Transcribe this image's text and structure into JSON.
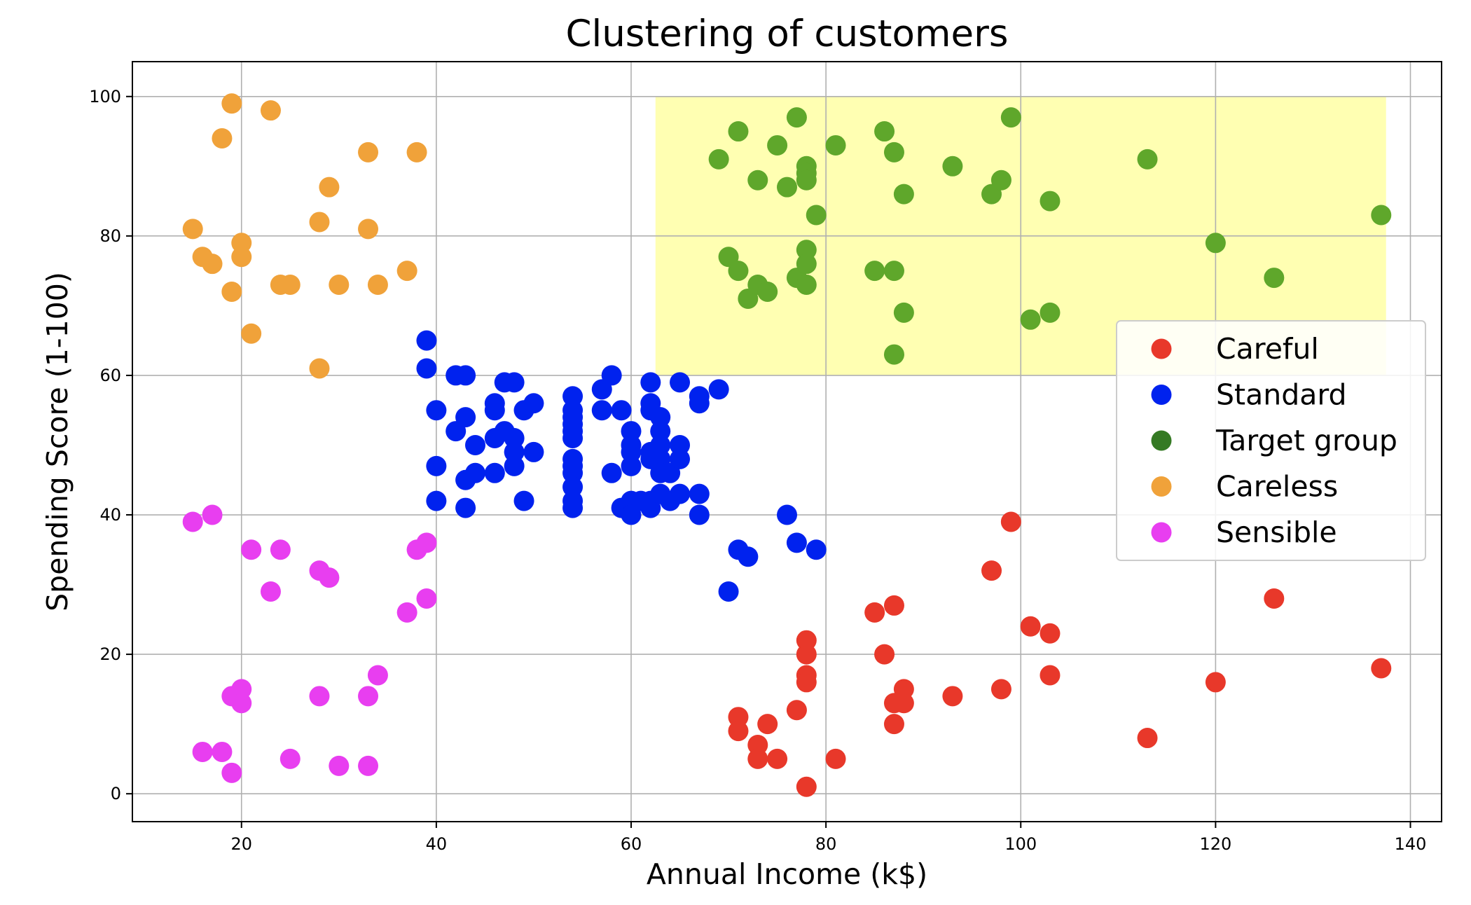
{
  "chart_data": {
    "type": "scatter",
    "title": "Clustering of customers",
    "xlabel": "Annual Income (k$)",
    "ylabel": "Spending Score (1-100)",
    "xlim": [
      8.8,
      143.2
    ],
    "ylim": [
      -4,
      105
    ],
    "xticks": [
      20,
      40,
      60,
      80,
      100,
      120,
      140
    ],
    "yticks": [
      0,
      20,
      40,
      60,
      80,
      100
    ],
    "grid": true,
    "legend_position": "right",
    "highlight_region": {
      "x": [
        62.5,
        137.5
      ],
      "y": [
        60,
        100
      ],
      "color": "#ffffb2"
    },
    "series": [
      {
        "name": "Careful",
        "color": "#e8382a",
        "points": [
          [
            71,
            11
          ],
          [
            71,
            9
          ],
          [
            73,
            7
          ],
          [
            73,
            5
          ],
          [
            74,
            10
          ],
          [
            75,
            5
          ],
          [
            77,
            12
          ],
          [
            78,
            22
          ],
          [
            78,
            20
          ],
          [
            78,
            17
          ],
          [
            78,
            16
          ],
          [
            78,
            1
          ],
          [
            81,
            5
          ],
          [
            85,
            26
          ],
          [
            86,
            20
          ],
          [
            87,
            27
          ],
          [
            87,
            13
          ],
          [
            87,
            10
          ],
          [
            88,
            15
          ],
          [
            88,
            13
          ],
          [
            93,
            14
          ],
          [
            97,
            32
          ],
          [
            98,
            15
          ],
          [
            99,
            39
          ],
          [
            101,
            24
          ],
          [
            103,
            23
          ],
          [
            103,
            17
          ],
          [
            113,
            8
          ],
          [
            120,
            16
          ],
          [
            126,
            28
          ],
          [
            137,
            18
          ]
        ]
      },
      {
        "name": "Standard",
        "color": "#0022ee",
        "points": [
          [
            39,
            65
          ],
          [
            39,
            61
          ],
          [
            40,
            55
          ],
          [
            40,
            47
          ],
          [
            40,
            42
          ],
          [
            42,
            60
          ],
          [
            42,
            52
          ],
          [
            43,
            60
          ],
          [
            43,
            54
          ],
          [
            43,
            45
          ],
          [
            43,
            41
          ],
          [
            44,
            50
          ],
          [
            44,
            46
          ],
          [
            46,
            56
          ],
          [
            46,
            55
          ],
          [
            46,
            51
          ],
          [
            46,
            46
          ],
          [
            47,
            59
          ],
          [
            47,
            52
          ],
          [
            48,
            59
          ],
          [
            48,
            51
          ],
          [
            48,
            49
          ],
          [
            48,
            47
          ],
          [
            49,
            55
          ],
          [
            49,
            42
          ],
          [
            50,
            56
          ],
          [
            50,
            49
          ],
          [
            54,
            57
          ],
          [
            54,
            55
          ],
          [
            54,
            54
          ],
          [
            54,
            53
          ],
          [
            54,
            52
          ],
          [
            54,
            51
          ],
          [
            54,
            48
          ],
          [
            54,
            47
          ],
          [
            54,
            46
          ],
          [
            54,
            44
          ],
          [
            54,
            42
          ],
          [
            54,
            41
          ],
          [
            57,
            58
          ],
          [
            57,
            55
          ],
          [
            58,
            60
          ],
          [
            58,
            46
          ],
          [
            59,
            55
          ],
          [
            59,
            41
          ],
          [
            60,
            52
          ],
          [
            60,
            50
          ],
          [
            60,
            49
          ],
          [
            60,
            47
          ],
          [
            60,
            42
          ],
          [
            60,
            40
          ],
          [
            61,
            42
          ],
          [
            62,
            59
          ],
          [
            62,
            56
          ],
          [
            62,
            55
          ],
          [
            62,
            49
          ],
          [
            62,
            48
          ],
          [
            62,
            42
          ],
          [
            62,
            41
          ],
          [
            63,
            54
          ],
          [
            63,
            52
          ],
          [
            63,
            50
          ],
          [
            63,
            48
          ],
          [
            63,
            46
          ],
          [
            63,
            43
          ],
          [
            64,
            46
          ],
          [
            64,
            42
          ],
          [
            65,
            59
          ],
          [
            65,
            50
          ],
          [
            65,
            48
          ],
          [
            65,
            43
          ],
          [
            67,
            57
          ],
          [
            67,
            56
          ],
          [
            67,
            43
          ],
          [
            67,
            40
          ],
          [
            69,
            58
          ],
          [
            70,
            29
          ],
          [
            71,
            35
          ],
          [
            72,
            34
          ],
          [
            76,
            40
          ],
          [
            77,
            36
          ],
          [
            79,
            35
          ]
        ]
      },
      {
        "name": "Target group",
        "color": "#5fa72b",
        "legend_color": "#357a24",
        "points": [
          [
            69,
            91
          ],
          [
            70,
            77
          ],
          [
            71,
            95
          ],
          [
            71,
            75
          ],
          [
            72,
            71
          ],
          [
            73,
            88
          ],
          [
            73,
            73
          ],
          [
            74,
            72
          ],
          [
            75,
            93
          ],
          [
            76,
            87
          ],
          [
            77,
            97
          ],
          [
            77,
            74
          ],
          [
            78,
            90
          ],
          [
            78,
            89
          ],
          [
            78,
            88
          ],
          [
            78,
            78
          ],
          [
            78,
            76
          ],
          [
            78,
            73
          ],
          [
            79,
            83
          ],
          [
            81,
            93
          ],
          [
            85,
            75
          ],
          [
            86,
            95
          ],
          [
            87,
            92
          ],
          [
            87,
            75
          ],
          [
            87,
            63
          ],
          [
            88,
            86
          ],
          [
            88,
            69
          ],
          [
            93,
            90
          ],
          [
            97,
            86
          ],
          [
            98,
            88
          ],
          [
            99,
            97
          ],
          [
            101,
            68
          ],
          [
            103,
            85
          ],
          [
            103,
            69
          ],
          [
            113,
            91
          ],
          [
            120,
            79
          ],
          [
            126,
            74
          ],
          [
            137,
            83
          ]
        ]
      },
      {
        "name": "Careless",
        "color": "#f0a23a",
        "points": [
          [
            15,
            81
          ],
          [
            16,
            77
          ],
          [
            17,
            76
          ],
          [
            18,
            94
          ],
          [
            19,
            99
          ],
          [
            19,
            72
          ],
          [
            20,
            79
          ],
          [
            20,
            77
          ],
          [
            21,
            66
          ],
          [
            23,
            98
          ],
          [
            24,
            73
          ],
          [
            25,
            73
          ],
          [
            28,
            82
          ],
          [
            28,
            61
          ],
          [
            29,
            87
          ],
          [
            30,
            73
          ],
          [
            33,
            92
          ],
          [
            33,
            81
          ],
          [
            34,
            73
          ],
          [
            37,
            75
          ],
          [
            38,
            92
          ]
        ]
      },
      {
        "name": "Sensible",
        "color": "#e83ef0",
        "points": [
          [
            15,
            39
          ],
          [
            16,
            6
          ],
          [
            17,
            40
          ],
          [
            18,
            6
          ],
          [
            19,
            14
          ],
          [
            19,
            3
          ],
          [
            20,
            15
          ],
          [
            20,
            13
          ],
          [
            21,
            35
          ],
          [
            23,
            29
          ],
          [
            24,
            35
          ],
          [
            25,
            5
          ],
          [
            28,
            32
          ],
          [
            28,
            14
          ],
          [
            29,
            31
          ],
          [
            30,
            4
          ],
          [
            33,
            14
          ],
          [
            33,
            4
          ],
          [
            34,
            17
          ],
          [
            37,
            26
          ],
          [
            38,
            35
          ],
          [
            39,
            36
          ],
          [
            39,
            28
          ]
        ]
      }
    ]
  }
}
